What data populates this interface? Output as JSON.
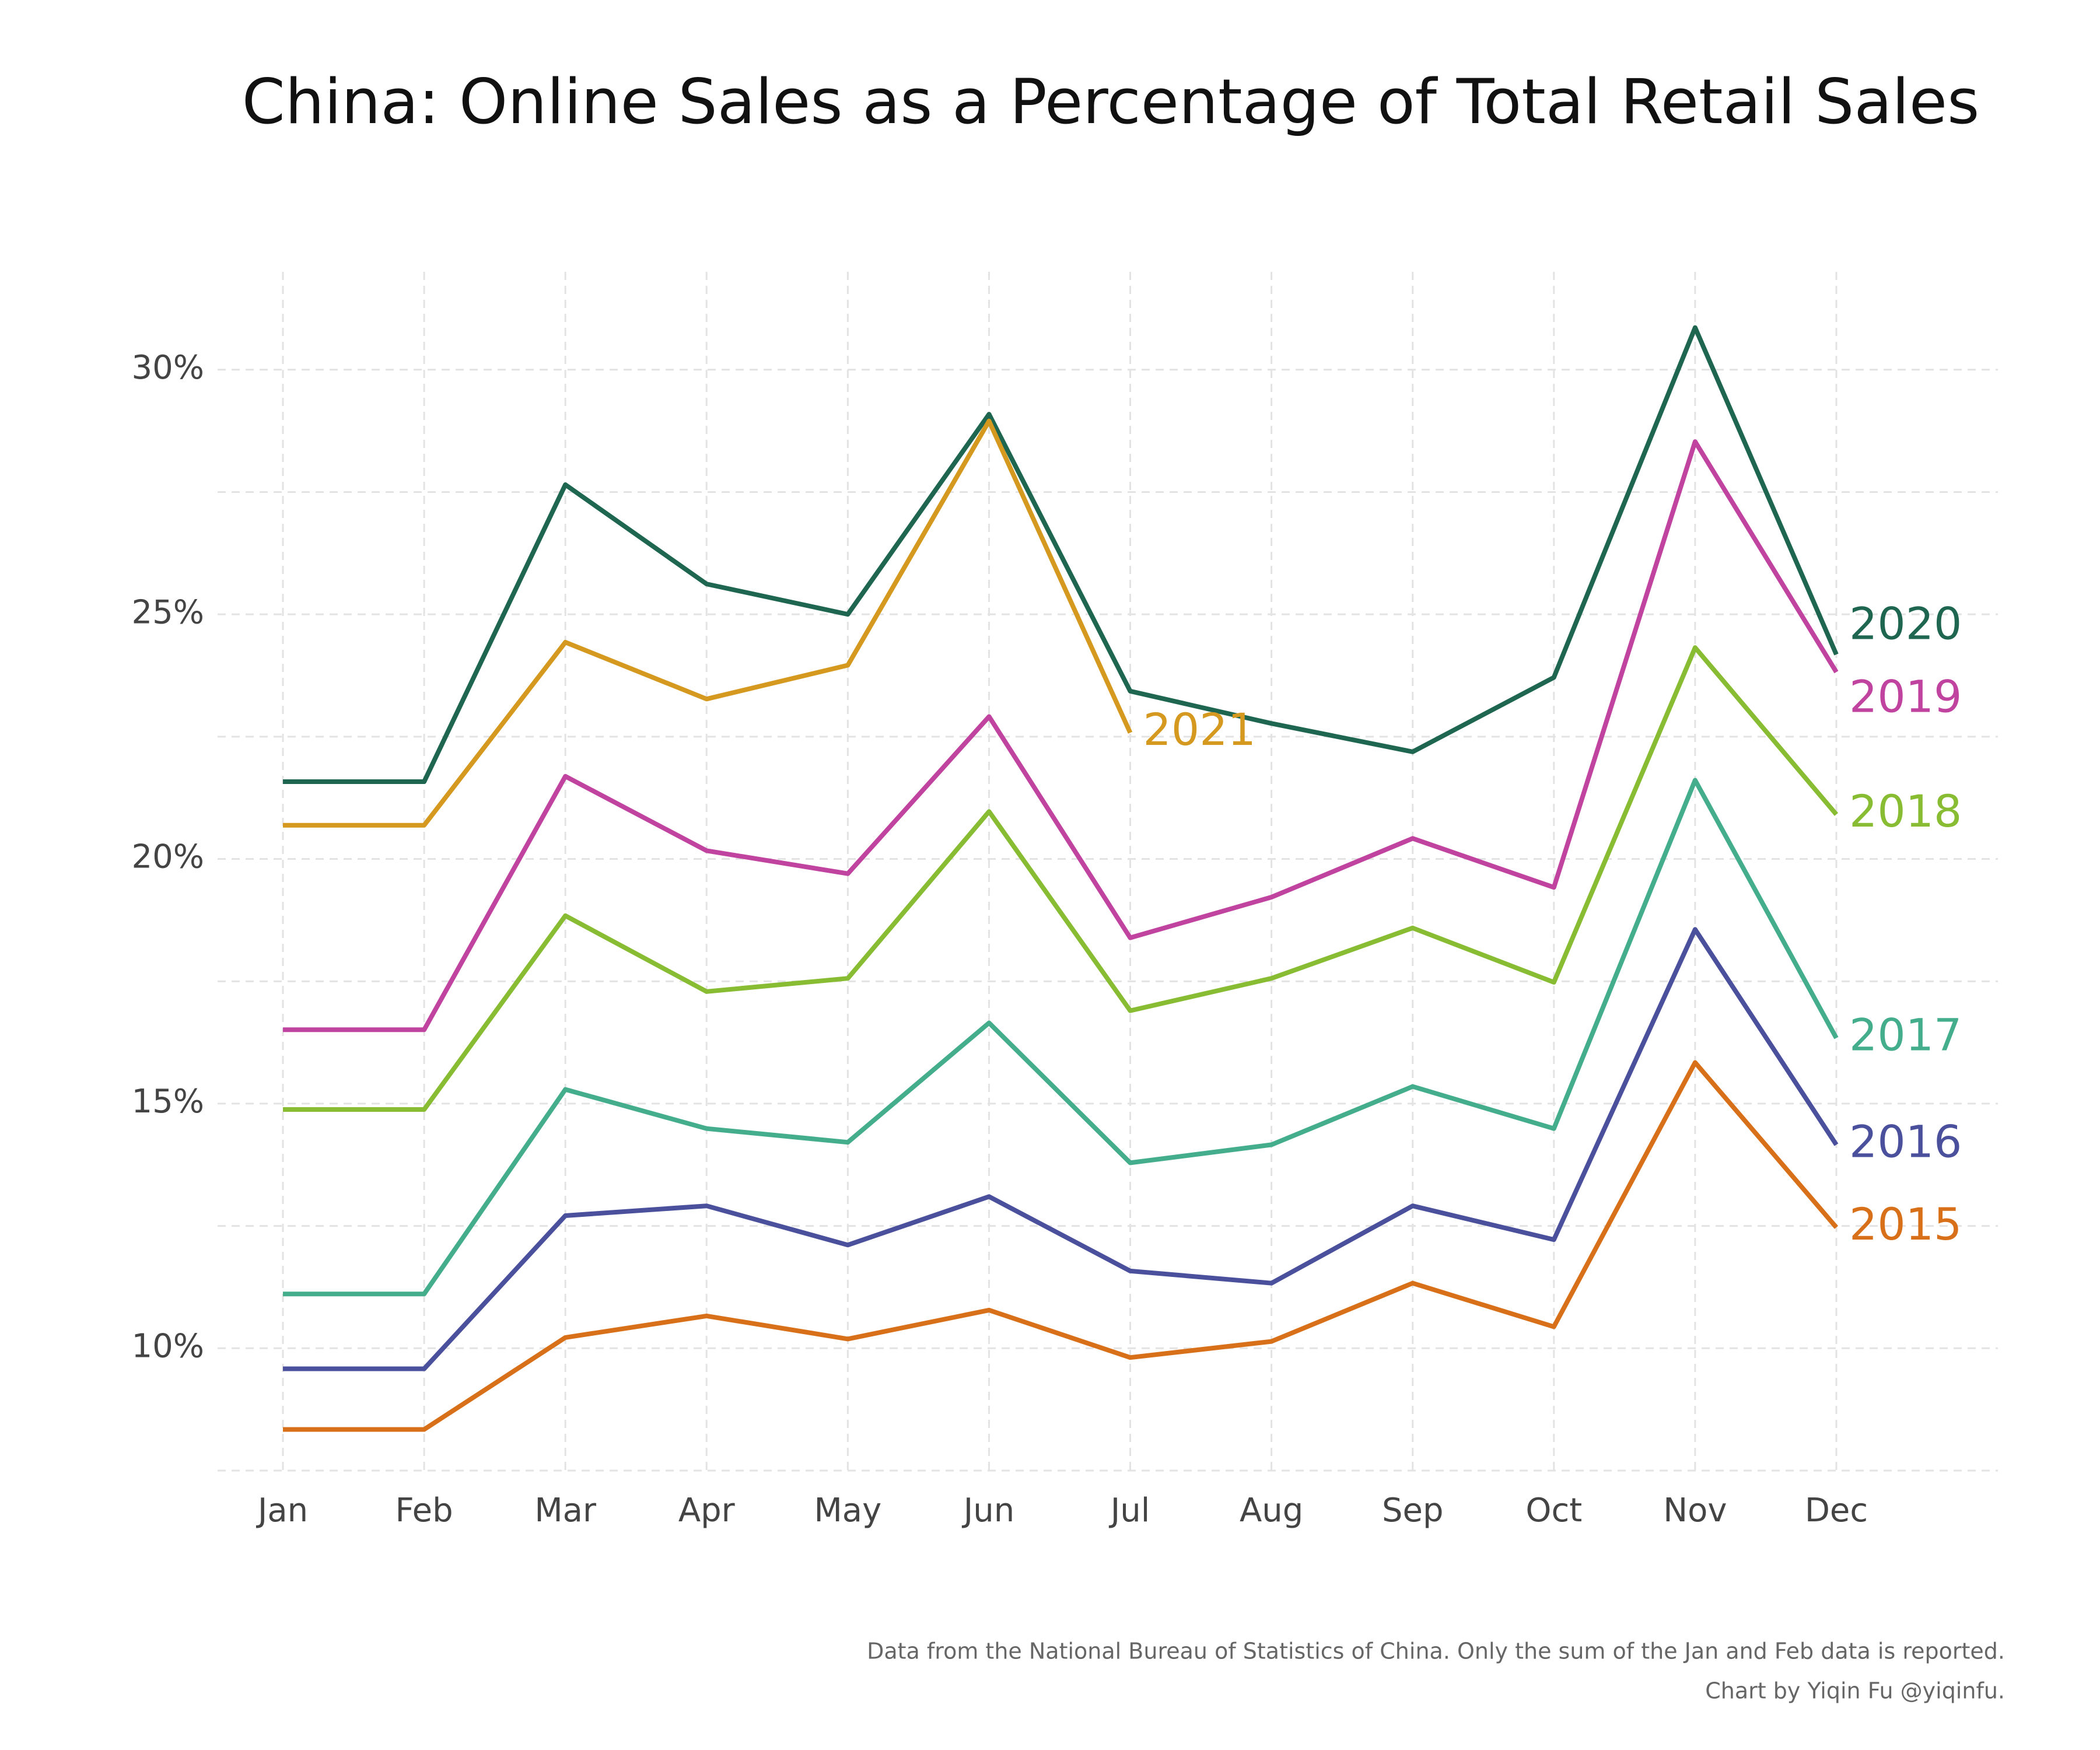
{
  "chart_data": {
    "type": "line",
    "title": "China: Online Sales as a Percentage of Total Retail Sales",
    "caption": [
      "Data from the National Bureau of Statistics of China. Only the sum of the Jan and Feb data is reported.",
      "Chart by Yiqin Fu @yiqinfu."
    ],
    "categories": [
      "Jan",
      "Feb",
      "Mar",
      "Apr",
      "May",
      "Jun",
      "Jul",
      "Aug",
      "Sep",
      "Oct",
      "Nov",
      "Dec"
    ],
    "series": [
      {
        "name": "2015",
        "color": "#d8701a",
        "values": [
          8.34,
          8.34,
          10.22,
          10.66,
          10.19,
          10.78,
          9.81,
          10.14,
          11.33,
          10.44,
          15.84,
          12.47
        ]
      },
      {
        "name": "2016",
        "color": "#4a509c",
        "values": [
          9.58,
          9.58,
          12.71,
          12.91,
          12.11,
          13.1,
          11.58,
          11.33,
          12.91,
          12.22,
          18.56,
          14.16
        ]
      },
      {
        "name": "2017",
        "color": "#44ad8c",
        "values": [
          11.11,
          11.11,
          15.29,
          14.49,
          14.21,
          16.65,
          13.79,
          14.16,
          15.35,
          14.49,
          21.61,
          16.34
        ]
      },
      {
        "name": "2018",
        "color": "#88bc33",
        "values": [
          14.88,
          14.88,
          18.84,
          17.29,
          17.56,
          20.97,
          16.9,
          17.56,
          18.59,
          17.48,
          24.32,
          20.91
        ]
      },
      {
        "name": "2019",
        "color": "#c0439f",
        "values": [
          16.51,
          16.51,
          21.69,
          20.17,
          19.7,
          22.91,
          18.39,
          19.22,
          20.42,
          19.42,
          28.53,
          23.82
        ]
      },
      {
        "name": "2020",
        "color": "#1f6650",
        "values": [
          21.58,
          21.58,
          27.65,
          25.62,
          25.0,
          29.09,
          23.43,
          22.77,
          22.19,
          23.71,
          30.86,
          24.18
        ]
      },
      {
        "name": "2021",
        "color": "#d4991e",
        "values": [
          20.69,
          20.69,
          24.43,
          23.27,
          23.96,
          28.95,
          22.58,
          null,
          null,
          null,
          null,
          null
        ]
      }
    ],
    "ylim": [
      7.5,
      32
    ],
    "yticks": [
      {
        "value": 10,
        "label": "10%"
      },
      {
        "value": 15,
        "label": "15%"
      },
      {
        "value": 20,
        "label": "20%"
      },
      {
        "value": 25,
        "label": "25%"
      },
      {
        "value": 30,
        "label": "30%"
      }
    ],
    "minor_yticks": [
      7.5,
      12.5,
      17.5,
      22.5,
      27.5
    ],
    "grid": true
  }
}
